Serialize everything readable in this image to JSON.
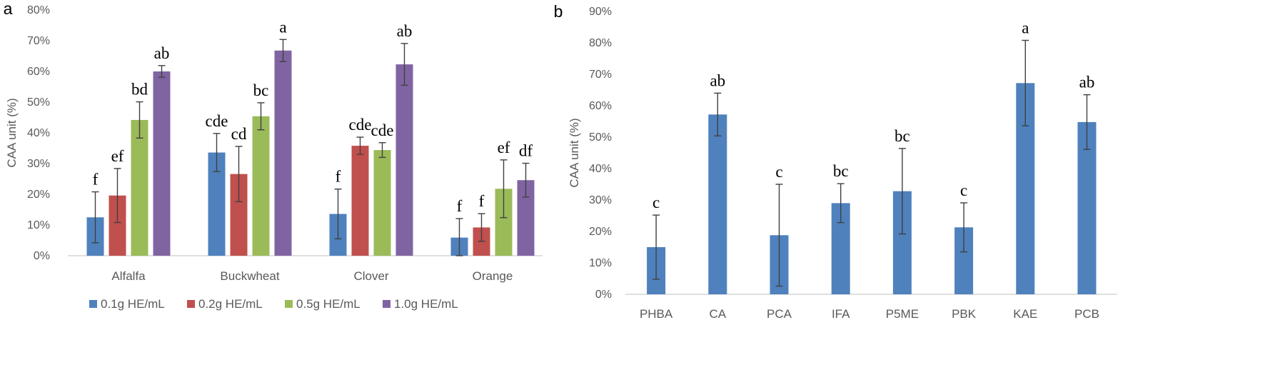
{
  "chart_data": [
    {
      "type": "bar",
      "panel_label": "a",
      "ylabel": "CAA unit (%)",
      "ylim": [
        0,
        80
      ],
      "yticks": [
        "0%",
        "10%",
        "20%",
        "30%",
        "40%",
        "50%",
        "60%",
        "70%",
        "80%"
      ],
      "categories": [
        "Alfalfa",
        "Buckwheat",
        "Clover",
        "Orange"
      ],
      "legend_position": "bottom",
      "series": [
        {
          "name": "0.1g HE/mL",
          "color": "#4F81BD",
          "values": [
            12.5,
            33.6,
            13.6,
            5.9
          ],
          "errors": [
            8.3,
            6.2,
            8.1,
            6.2
          ],
          "letters": [
            "f",
            "cde",
            "f",
            "f"
          ]
        },
        {
          "name": "0.2g HE/mL",
          "color": "#C0504D",
          "values": [
            19.6,
            26.6,
            35.8,
            9.2
          ],
          "errors": [
            8.8,
            9.0,
            2.8,
            4.5
          ],
          "letters": [
            "ef",
            "cd",
            "cde",
            "f"
          ]
        },
        {
          "name": "0.5g HE/mL",
          "color": "#9BBB59",
          "values": [
            44.2,
            45.4,
            34.4,
            21.8
          ],
          "errors": [
            5.9,
            4.4,
            2.4,
            9.4
          ],
          "letters": [
            "bd",
            "bc",
            "cde",
            "ef"
          ]
        },
        {
          "name": "1.0g HE/mL",
          "color": "#8064A2",
          "values": [
            60.0,
            66.8,
            62.3,
            24.6
          ],
          "errors": [
            1.9,
            3.6,
            6.8,
            5.5
          ],
          "letters": [
            "ab",
            "a",
            "ab",
            "df"
          ]
        }
      ]
    },
    {
      "type": "bar",
      "panel_label": "b",
      "ylabel": "CAA unit (%)",
      "ylim": [
        0,
        90
      ],
      "yticks": [
        "0%",
        "10%",
        "20%",
        "30%",
        "40%",
        "50%",
        "60%",
        "70%",
        "80%",
        "90%"
      ],
      "categories": [
        "PHBA",
        "CA",
        "PCA",
        "IFA",
        "P5ME",
        "PBK",
        "KAE",
        "PCB"
      ],
      "series": [
        {
          "color": "#4F81BD",
          "values": [
            15.0,
            57.2,
            18.8,
            29.0,
            32.8,
            21.3,
            67.2,
            54.8
          ],
          "errors": [
            10.2,
            6.8,
            16.2,
            6.2,
            13.6,
            7.8,
            13.6,
            8.7
          ],
          "letters": [
            "c",
            "ab",
            "c",
            "bc",
            "bc",
            "c",
            "a",
            "ab"
          ]
        }
      ]
    }
  ]
}
